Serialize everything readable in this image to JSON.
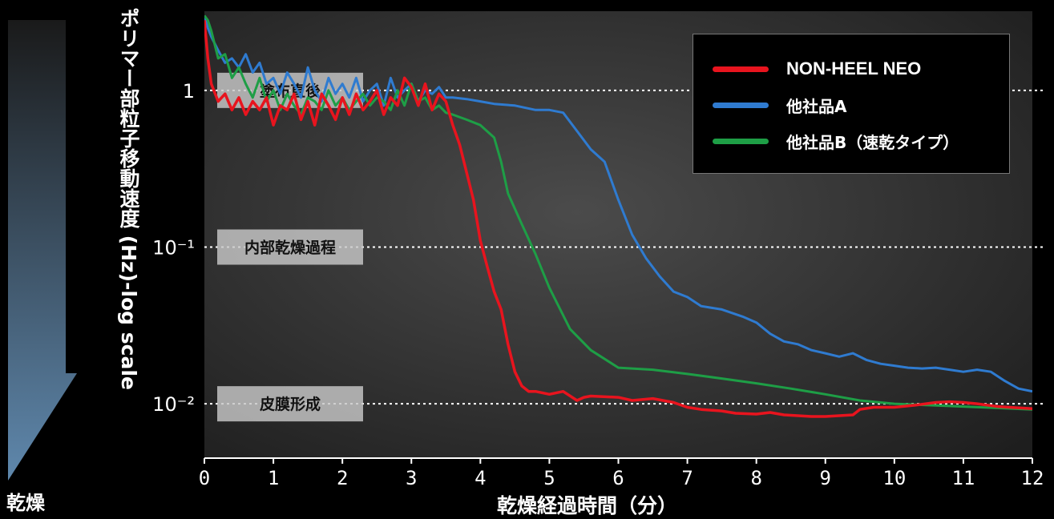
{
  "colors": {
    "background": "#000000",
    "plot_bg_center": "#4b4b4b",
    "plot_bg_edge": "#1e1e1e",
    "arrow_top": "#1a1a1a",
    "arrow_bottom": "#5f88ad",
    "phase_box": "#c8c8c8",
    "ref_line": "#ffffff"
  },
  "sidebar": {
    "label": "乾燥"
  },
  "chart_data": {
    "type": "line",
    "ylabel": "ポリマー部粒子移動速度 (Hz)-log scale",
    "xlabel": "乾燥経過時間（分）",
    "yscale": "log",
    "xlim": [
      0,
      12
    ],
    "ylim": [
      0.0045,
      3.2
    ],
    "xticks": [
      "0",
      "1",
      "2",
      "3",
      "4",
      "5",
      "6",
      "7",
      "8",
      "9",
      "10",
      "11",
      "12"
    ],
    "yticks": [
      {
        "value": 1,
        "label": "1"
      },
      {
        "value": 0.1,
        "label": "10⁻¹"
      },
      {
        "value": 0.01,
        "label": "10⁻²"
      }
    ],
    "phases": [
      {
        "label": "塗布直後",
        "y": 1
      },
      {
        "label": "内部乾燥過程",
        "y": 0.1
      },
      {
        "label": "皮膜形成",
        "y": 0.01
      }
    ],
    "legend_position": "top-right",
    "series": [
      {
        "name": "NON-HEEL NEO",
        "color": "#e8141e",
        "x": [
          0,
          0.05,
          0.1,
          0.2,
          0.3,
          0.4,
          0.5,
          0.6,
          0.7,
          0.8,
          0.9,
          1.0,
          1.1,
          1.2,
          1.3,
          1.4,
          1.5,
          1.6,
          1.7,
          1.8,
          1.9,
          2.0,
          2.1,
          2.2,
          2.3,
          2.4,
          2.5,
          2.6,
          2.7,
          2.8,
          2.9,
          3.0,
          3.1,
          3.2,
          3.3,
          3.4,
          3.5,
          3.6,
          3.7,
          3.8,
          3.9,
          4.0,
          4.1,
          4.2,
          4.3,
          4.4,
          4.5,
          4.6,
          4.7,
          4.8,
          5.0,
          5.2,
          5.4,
          5.5,
          5.6,
          6.0,
          6.2,
          6.5,
          6.8,
          7.0,
          7.2,
          7.5,
          7.7,
          8.0,
          8.2,
          8.4,
          8.6,
          8.8,
          9.0,
          9.2,
          9.4,
          9.5,
          9.7,
          10.0,
          10.3,
          10.6,
          10.8,
          11.0,
          11.2,
          11.5,
          12.0
        ],
        "y": [
          2.8,
          1.6,
          1.1,
          0.85,
          0.95,
          0.75,
          0.9,
          0.7,
          0.85,
          0.75,
          0.9,
          0.6,
          0.8,
          0.75,
          0.95,
          0.65,
          0.85,
          0.6,
          0.95,
          0.8,
          0.65,
          0.9,
          0.7,
          0.95,
          0.75,
          0.85,
          1.0,
          0.7,
          0.9,
          0.8,
          1.2,
          1.05,
          0.8,
          1.1,
          0.75,
          0.95,
          0.85,
          0.6,
          0.45,
          0.3,
          0.2,
          0.11,
          0.075,
          0.052,
          0.04,
          0.024,
          0.016,
          0.013,
          0.012,
          0.012,
          0.0115,
          0.012,
          0.0105,
          0.011,
          0.0112,
          0.011,
          0.0105,
          0.0108,
          0.0102,
          0.0095,
          0.0092,
          0.009,
          0.0087,
          0.0086,
          0.0088,
          0.0085,
          0.0084,
          0.0083,
          0.0083,
          0.0084,
          0.0085,
          0.0092,
          0.0095,
          0.0095,
          0.0098,
          0.0102,
          0.0103,
          0.0102,
          0.01,
          0.0096,
          0.0093
        ]
      },
      {
        "name": "他社品A",
        "color": "#2f7bd0",
        "x": [
          0,
          0.05,
          0.1,
          0.2,
          0.3,
          0.4,
          0.5,
          0.6,
          0.7,
          0.8,
          0.9,
          1.0,
          1.1,
          1.2,
          1.3,
          1.4,
          1.5,
          1.6,
          1.7,
          1.8,
          1.9,
          2.0,
          2.1,
          2.2,
          2.3,
          2.4,
          2.5,
          2.6,
          2.7,
          2.8,
          2.9,
          3.0,
          3.1,
          3.2,
          3.3,
          3.4,
          3.5,
          3.6,
          3.8,
          4.0,
          4.2,
          4.5,
          4.8,
          5.0,
          5.2,
          5.4,
          5.6,
          5.8,
          6.0,
          6.2,
          6.4,
          6.6,
          6.8,
          7.0,
          7.2,
          7.5,
          7.8,
          8.0,
          8.2,
          8.4,
          8.6,
          8.8,
          9.0,
          9.2,
          9.4,
          9.6,
          9.8,
          10.0,
          10.2,
          10.4,
          10.6,
          10.8,
          11.0,
          11.2,
          11.4,
          11.6,
          11.8,
          12.0
        ],
        "y": [
          3.0,
          2.5,
          2.2,
          1.8,
          1.5,
          1.6,
          1.4,
          1.7,
          1.3,
          1.5,
          1.1,
          1.2,
          0.95,
          1.3,
          1.1,
          0.9,
          1.4,
          1.0,
          0.85,
          1.2,
          0.95,
          1.1,
          0.9,
          1.2,
          0.85,
          1.0,
          1.1,
          0.8,
          1.2,
          0.9,
          1.0,
          1.1,
          0.85,
          1.0,
          0.95,
          1.05,
          0.9,
          0.9,
          0.88,
          0.85,
          0.82,
          0.8,
          0.75,
          0.75,
          0.72,
          0.55,
          0.42,
          0.35,
          0.2,
          0.12,
          0.085,
          0.065,
          0.052,
          0.048,
          0.042,
          0.04,
          0.036,
          0.033,
          0.028,
          0.025,
          0.024,
          0.022,
          0.021,
          0.02,
          0.021,
          0.019,
          0.018,
          0.0175,
          0.017,
          0.0168,
          0.017,
          0.0165,
          0.016,
          0.0165,
          0.016,
          0.014,
          0.0125,
          0.012
        ]
      },
      {
        "name": "他社品B（速乾タイプ）",
        "color": "#1e9e46",
        "x": [
          0,
          0.05,
          0.1,
          0.2,
          0.3,
          0.4,
          0.5,
          0.6,
          0.7,
          0.8,
          0.9,
          1.0,
          1.1,
          1.2,
          1.3,
          1.4,
          1.5,
          1.6,
          1.7,
          1.8,
          1.9,
          2.0,
          2.1,
          2.2,
          2.3,
          2.4,
          2.5,
          2.6,
          2.7,
          2.8,
          2.9,
          3.0,
          3.1,
          3.2,
          3.3,
          3.4,
          3.5,
          3.6,
          3.8,
          4.0,
          4.2,
          4.3,
          4.4,
          4.6,
          4.8,
          5.0,
          5.3,
          5.6,
          6.0,
          6.5,
          7.0,
          7.5,
          8.0,
          8.5,
          9.0,
          9.5,
          10.0,
          10.5,
          11.0,
          11.5,
          12.0
        ],
        "y": [
          3.0,
          2.8,
          2.4,
          1.6,
          1.7,
          1.2,
          1.4,
          1.1,
          0.9,
          1.2,
          0.85,
          1.0,
          0.75,
          0.95,
          0.8,
          0.7,
          0.9,
          0.85,
          0.75,
          1.0,
          0.8,
          0.9,
          0.75,
          0.85,
          0.95,
          0.8,
          0.9,
          0.85,
          0.75,
          1.0,
          0.8,
          1.1,
          0.85,
          0.9,
          0.75,
          0.8,
          0.72,
          0.7,
          0.65,
          0.6,
          0.5,
          0.35,
          0.22,
          0.14,
          0.09,
          0.055,
          0.03,
          0.022,
          0.017,
          0.0165,
          0.0155,
          0.0145,
          0.0135,
          0.0125,
          0.0115,
          0.0105,
          0.01,
          0.0098,
          0.0096,
          0.0094,
          0.0092
        ]
      }
    ]
  }
}
